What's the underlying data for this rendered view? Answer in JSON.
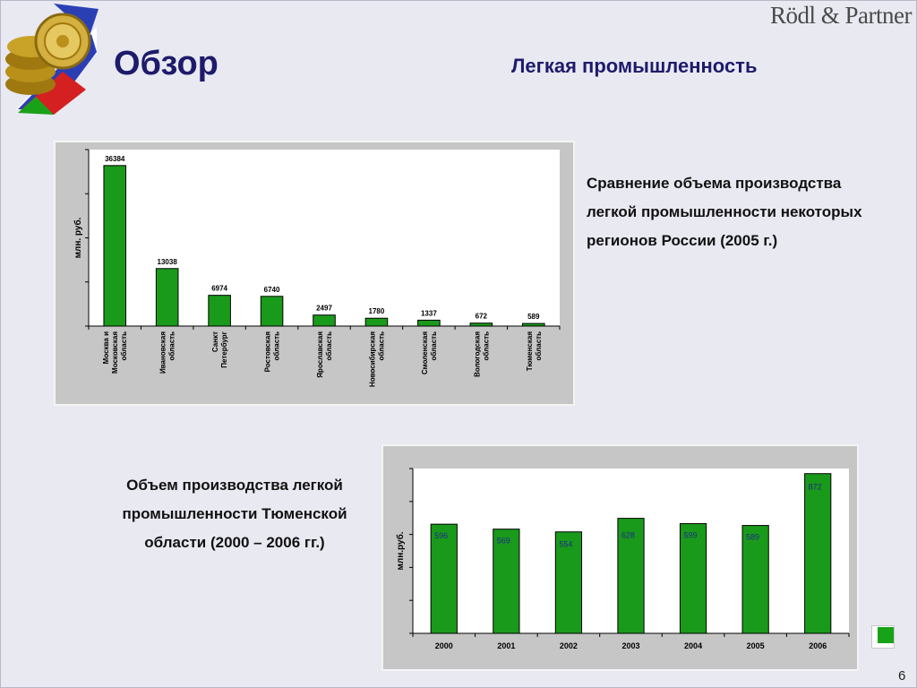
{
  "header": {
    "title": "Обзор",
    "subtitle": "Легкая промышленность",
    "brand": "Rödl & Partner"
  },
  "descriptions": {
    "regions_lines": [
      "Сравнение объема производства",
      "легкой промышленности некоторых",
      "регионов России (2005 г.)"
    ],
    "tyumen_lines": [
      "Объем производства легкой",
      "промышленности Тюменской",
      "области (2000 – 2006 гг.)"
    ]
  },
  "page_number": "6",
  "colors": {
    "bar": "#1a9a1a",
    "panel": "#c6c6c6",
    "plot": "#ffffff",
    "title": "#1e1b6b",
    "badge": "#17a317"
  },
  "chart_data": [
    {
      "type": "bar",
      "ylabel": "млн. руб.",
      "categories": [
        [
          "Москва и",
          "Московская",
          "область"
        ],
        [
          "Ивановская",
          "область"
        ],
        [
          "Санкт",
          "Петербург"
        ],
        [
          "Ростовская",
          "область"
        ],
        [
          "Ярославская",
          "область"
        ],
        [
          "Новосибирская",
          "область"
        ],
        [
          "Смоленская",
          "область"
        ],
        [
          "Вологодская",
          "область"
        ],
        [
          "Тюменская",
          "область"
        ]
      ],
      "values": [
        36384,
        13038,
        6974,
        6740,
        2497,
        1780,
        1337,
        672,
        589
      ],
      "data_labels": [
        "36384",
        "13038",
        "6974",
        "6740",
        "2497",
        "1780",
        "1337",
        "672",
        "589"
      ],
      "ylim": [
        0,
        40000
      ],
      "grid": false
    },
    {
      "type": "bar",
      "ylabel": "млн.руб.",
      "categories": [
        "2000",
        "2001",
        "2002",
        "2003",
        "2004",
        "2005",
        "2006"
      ],
      "values": [
        596,
        569,
        554,
        628,
        599,
        589,
        872
      ],
      "data_labels": [
        "596",
        "569",
        "554",
        "628",
        "599",
        "589",
        "872"
      ],
      "ylim": [
        0,
        900
      ],
      "grid": false
    }
  ]
}
